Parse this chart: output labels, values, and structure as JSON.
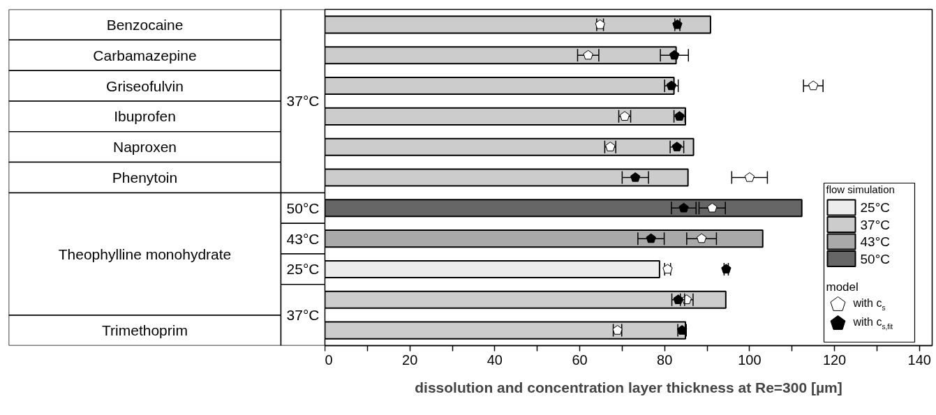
{
  "chart_data": {
    "type": "bar",
    "orientation": "horizontal",
    "categories": [
      "Benzocaine",
      "Carbamazepine",
      "Griseofulvin",
      "Ibuprofen",
      "Naproxen",
      "Phenytoin",
      "50°C",
      "43°C",
      "25°C",
      null,
      "Trimethoprim"
    ],
    "series": [
      {
        "name": "25°C",
        "color": "#ececec",
        "values": [
          null,
          null,
          null,
          null,
          null,
          null,
          null,
          null,
          78.8,
          null,
          null
        ]
      },
      {
        "name": "37°C",
        "color": "#cccccc",
        "values": [
          90.8,
          82.7,
          82.2,
          84.9,
          86.8,
          85.5,
          null,
          null,
          null,
          94.4,
          84.9
        ]
      },
      {
        "name": "43°C",
        "color": "#a9a9a9",
        "values": [
          null,
          null,
          null,
          null,
          null,
          null,
          null,
          103.1,
          null,
          null,
          null
        ]
      },
      {
        "name": "50°C",
        "color": "#666666",
        "values": [
          null,
          null,
          null,
          null,
          null,
          null,
          112.3,
          null,
          null,
          null,
          null
        ]
      },
      {
        "name": "with c$_{s}$",
        "type": "scatter",
        "color": "#ffffff",
        "values": [
          64.8,
          62.0,
          115.0,
          70.6,
          67.2,
          100.0,
          91.2,
          88.7,
          80.7,
          85.2,
          68.9
        ],
        "errors": [
          0.8,
          2.5,
          2.3,
          1.4,
          1.3,
          4.2,
          3.1,
          3.5,
          0.7,
          1.5,
          1.0
        ]
      },
      {
        "name": "with c$_{s,fit}$",
        "type": "scatter",
        "color": "#000000",
        "values": [
          83.0,
          82.3,
          81.6,
          83.5,
          82.9,
          73.1,
          84.5,
          76.8,
          94.5,
          83.2,
          84.1
        ],
        "errors": [
          0.6,
          3.3,
          1.6,
          1.3,
          1.6,
          3.1,
          2.9,
          3.1,
          0.5,
          1.5,
          1.0
        ]
      }
    ],
    "xlabel": "dissolution and concentration layer thickness at Re=300 [µm]",
    "xlim": [
      0,
      143
    ],
    "xticks": [
      0,
      {
        "value": 10,
        "label": null
      },
      20,
      {
        "value": 30,
        "label": null
      },
      40,
      {
        "value": 50,
        "label": null
      },
      60,
      {
        "value": 70,
        "label": null
      },
      80,
      {
        "value": 90,
        "label": null
      },
      100,
      {
        "value": 110,
        "label": null
      },
      120,
      {
        "value": 130,
        "label": null
      },
      140
    ],
    "legend": "bottom right",
    "legend_title": "flow simulation",
    "annotations": [
      "37°C",
      "Theophylline monohydrate",
      "37°C",
      "model"
    ]
  }
}
